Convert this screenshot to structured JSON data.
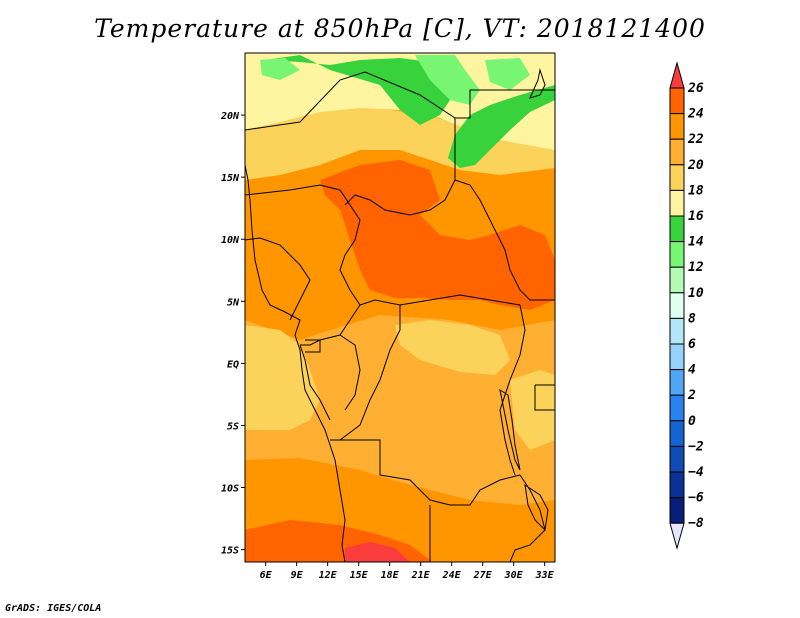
{
  "title": "Temperature at 850hPa [C], VT: 2018121400",
  "credit": "GrADS: IGES/COLA",
  "map": {
    "lon_range": [
      4,
      34
    ],
    "lat_range": [
      -16,
      25
    ],
    "lon_ticks": [
      {
        "value": 6,
        "label": "6E"
      },
      {
        "value": 9,
        "label": "9E"
      },
      {
        "value": 12,
        "label": "12E"
      },
      {
        "value": 15,
        "label": "15E"
      },
      {
        "value": 18,
        "label": "18E"
      },
      {
        "value": 21,
        "label": "21E"
      },
      {
        "value": 24,
        "label": "24E"
      },
      {
        "value": 27,
        "label": "27E"
      },
      {
        "value": 30,
        "label": "30E"
      },
      {
        "value": 33,
        "label": "33E"
      }
    ],
    "lat_ticks": [
      {
        "value": 20,
        "label": "20N"
      },
      {
        "value": 15,
        "label": "15N"
      },
      {
        "value": 10,
        "label": "10N"
      },
      {
        "value": 5,
        "label": "5N"
      },
      {
        "value": 0,
        "label": "EQ"
      },
      {
        "value": -5,
        "label": "5S"
      },
      {
        "value": -10,
        "label": "10S"
      },
      {
        "value": -15,
        "label": "15S"
      }
    ]
  },
  "colorbar": {
    "labels": [
      "26",
      "24",
      "22",
      "20",
      "18",
      "16",
      "14",
      "12",
      "10",
      "8",
      "6",
      "4",
      "2",
      "0",
      "−2",
      "−4",
      "−6",
      "−8"
    ],
    "colors": [
      "#fa3c3c",
      "#ff6400",
      "#ff9600",
      "#ffaf32",
      "#fbd25a",
      "#fff5a0",
      "#37d23c",
      "#78f573",
      "#b4fab4",
      "#e1fff0",
      "#b4e6fa",
      "#96d2fa",
      "#50a5f5",
      "#2882f0",
      "#1464d2",
      "#0f4bb4",
      "#0a3296",
      "#081e78",
      "#000a5a",
      "#e6e6ff"
    ]
  }
}
